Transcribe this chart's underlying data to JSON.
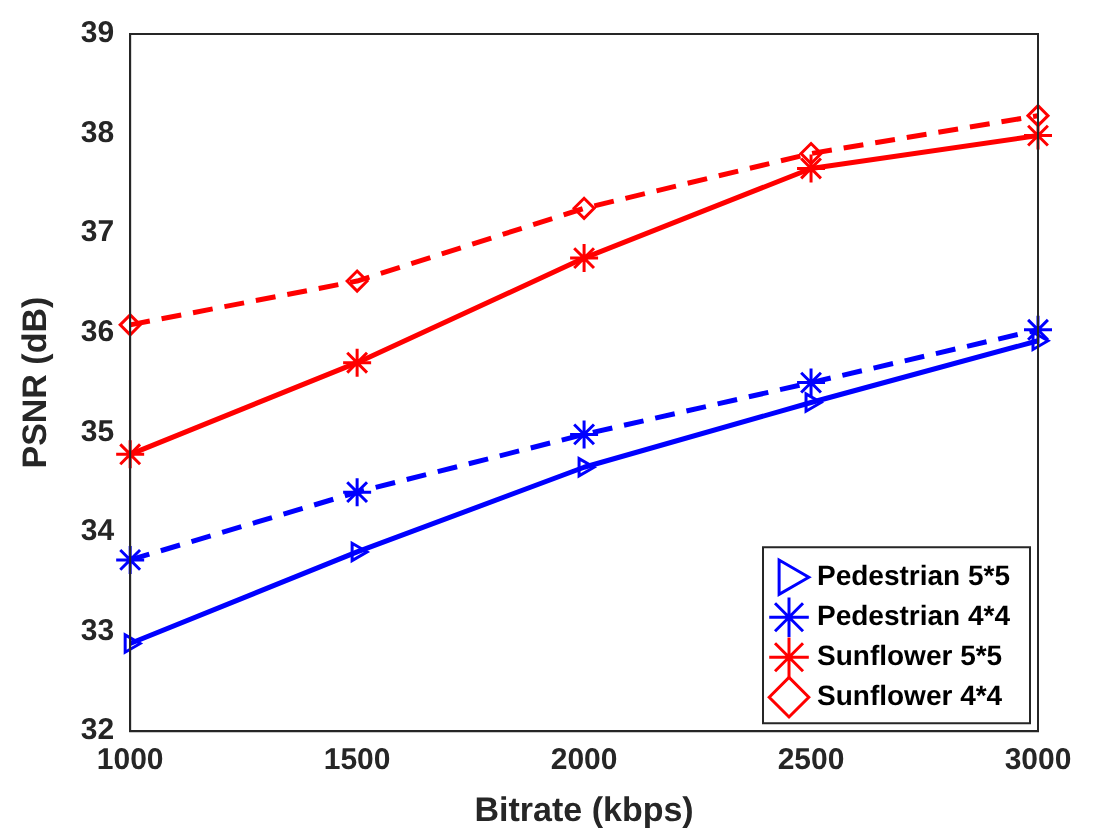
{
  "chart_data": {
    "type": "line",
    "xlabel": "Bitrate (kbps)",
    "ylabel": "PSNR (dB)",
    "x": [
      1000,
      1500,
      2000,
      2500,
      3000
    ],
    "xlim": [
      1000,
      3000
    ],
    "xticks": [
      1000,
      1500,
      2000,
      2500,
      3000
    ],
    "ylim": [
      32,
      39
    ],
    "yticks": [
      32,
      33,
      34,
      35,
      36,
      37,
      38,
      39
    ],
    "grid": false,
    "legend": "bottom right",
    "series": [
      {
        "name": "Pedestrian 5*5",
        "color": "#0000ff",
        "marker": "triangle",
        "line_style": "solid",
        "values": [
          32.88,
          33.8,
          34.65,
          35.3,
          35.92
        ]
      },
      {
        "name": "Pedestrian 4*4",
        "color": "#0000ff",
        "marker": "cross",
        "line_style": "dashed",
        "values": [
          33.72,
          34.4,
          34.98,
          35.5,
          36.03
        ]
      },
      {
        "name": "Sunflower 5*5",
        "color": "#ff0000",
        "marker": "cross",
        "line_style": "solid",
        "values": [
          34.78,
          35.7,
          36.75,
          37.65,
          37.98
        ]
      },
      {
        "name": "Sunflower 4*4",
        "color": "#ff0000",
        "marker": "diamond",
        "line_style": "dashed",
        "values": [
          36.08,
          36.52,
          37.25,
          37.8,
          38.18
        ]
      }
    ]
  }
}
